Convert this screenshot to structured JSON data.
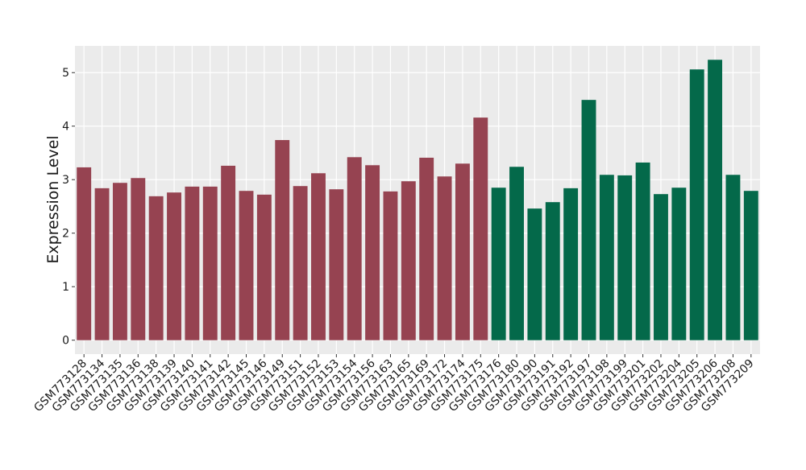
{
  "chart_data": {
    "type": "bar",
    "y_label": "Expression Level",
    "categories": [
      "GSM773128",
      "GSM773134",
      "GSM773135",
      "GSM773136",
      "GSM773138",
      "GSM773139",
      "GSM773140",
      "GSM773141",
      "GSM773142",
      "GSM773145",
      "GSM773146",
      "GSM773149",
      "GSM773151",
      "GSM773152",
      "GSM773153",
      "GSM773154",
      "GSM773156",
      "GSM773163",
      "GSM773165",
      "GSM773169",
      "GSM773172",
      "GSM773174",
      "GSM773175",
      "GSM773176",
      "GSM773180",
      "GSM773190",
      "GSM773191",
      "GSM773192",
      "GSM773197",
      "GSM773198",
      "GSM773199",
      "GSM773201",
      "GSM773202",
      "GSM773204",
      "GSM773205",
      "GSM773206",
      "GSM773208",
      "GSM773209"
    ],
    "values": [
      3.23,
      2.84,
      2.94,
      3.03,
      2.69,
      2.76,
      2.87,
      2.87,
      3.26,
      2.79,
      2.72,
      3.74,
      2.88,
      3.12,
      2.82,
      3.42,
      3.27,
      2.78,
      2.97,
      3.41,
      3.06,
      3.3,
      4.16,
      2.85,
      3.24,
      2.46,
      2.58,
      2.84,
      4.49,
      3.09,
      3.08,
      3.32,
      2.73,
      2.85,
      5.06,
      5.24,
      3.09,
      2.79
    ],
    "colors": [
      "#964351",
      "#964351",
      "#964351",
      "#964351",
      "#964351",
      "#964351",
      "#964351",
      "#964351",
      "#964351",
      "#964351",
      "#964351",
      "#964351",
      "#964351",
      "#964351",
      "#964351",
      "#964351",
      "#964351",
      "#964351",
      "#964351",
      "#964351",
      "#964351",
      "#964351",
      "#964351",
      "#04694a",
      "#04694a",
      "#04694a",
      "#04694a",
      "#04694a",
      "#04694a",
      "#04694a",
      "#04694a",
      "#04694a",
      "#04694a",
      "#04694a",
      "#04694a",
      "#04694a",
      "#04694a",
      "#04694a"
    ],
    "ylim": [
      -0.26,
      5.5
    ],
    "yticks": [
      0,
      1,
      2,
      3,
      4,
      5
    ],
    "grid": true
  }
}
